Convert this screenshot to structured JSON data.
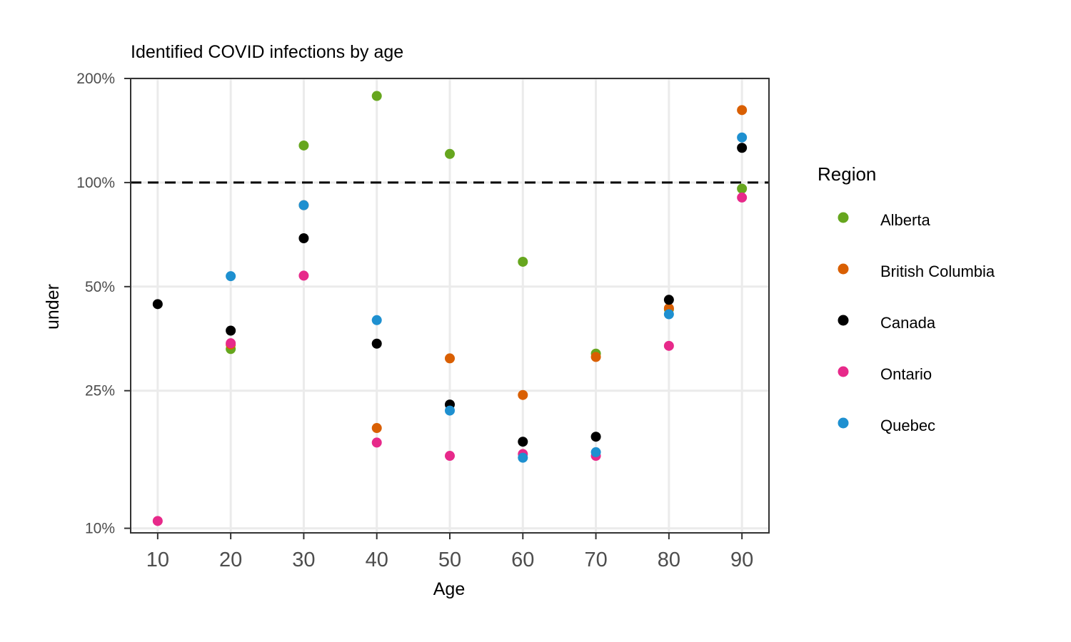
{
  "chart_data": {
    "type": "scatter",
    "title": "Identified COVID infections by age",
    "xlabel": "Age",
    "ylabel": "under",
    "y_scale": "log",
    "xlim": [
      6.3,
      93.7
    ],
    "ylim": [
      9.7,
      200
    ],
    "x_ticks": [
      10,
      20,
      30,
      40,
      50,
      60,
      70,
      80,
      90
    ],
    "y_ticks": [
      10,
      25,
      50,
      100,
      200
    ],
    "y_tick_labels": [
      "10%",
      "25%",
      "50%",
      "100%",
      "200%"
    ],
    "reference_line": {
      "y": 100,
      "style": "dashed",
      "color": "#000000"
    },
    "grid": true,
    "legend": {
      "title": "Region",
      "position": "right"
    },
    "series": [
      {
        "name": "Alberta",
        "color": "#66a61e",
        "points": [
          [
            20,
            33
          ],
          [
            30,
            128
          ],
          [
            40,
            178
          ],
          [
            50,
            121
          ],
          [
            60,
            59
          ],
          [
            70,
            32
          ],
          [
            80,
            43
          ],
          [
            90,
            96
          ]
        ]
      },
      {
        "name": "British Columbia",
        "color": "#d95f02",
        "points": [
          [
            20,
            34
          ],
          [
            30,
            86
          ],
          [
            40,
            19.5
          ],
          [
            50,
            31
          ],
          [
            60,
            24.3
          ],
          [
            70,
            31.3
          ],
          [
            80,
            43.3
          ],
          [
            90,
            162
          ]
        ]
      },
      {
        "name": "Canada",
        "color": "#000000",
        "points": [
          [
            10,
            44.5
          ],
          [
            20,
            37.3
          ],
          [
            30,
            69
          ],
          [
            40,
            34.2
          ],
          [
            50,
            22.8
          ],
          [
            60,
            17.8
          ],
          [
            70,
            18.4
          ],
          [
            80,
            45.8
          ],
          [
            90,
            126
          ]
        ]
      },
      {
        "name": "Ontario",
        "color": "#e7298a",
        "points": [
          [
            10,
            10.5
          ],
          [
            20,
            34.3
          ],
          [
            30,
            53.8
          ],
          [
            40,
            17.7
          ],
          [
            50,
            16.2
          ],
          [
            60,
            16.4
          ],
          [
            70,
            16.2
          ],
          [
            80,
            33.7
          ],
          [
            90,
            90.5
          ]
        ]
      },
      {
        "name": "Quebec",
        "color": "#1e90d0",
        "points": [
          [
            20,
            53.6
          ],
          [
            30,
            86
          ],
          [
            40,
            40
          ],
          [
            50,
            21.9
          ],
          [
            60,
            16
          ],
          [
            70,
            16.6
          ],
          [
            80,
            41.6
          ],
          [
            90,
            135
          ]
        ]
      }
    ]
  }
}
